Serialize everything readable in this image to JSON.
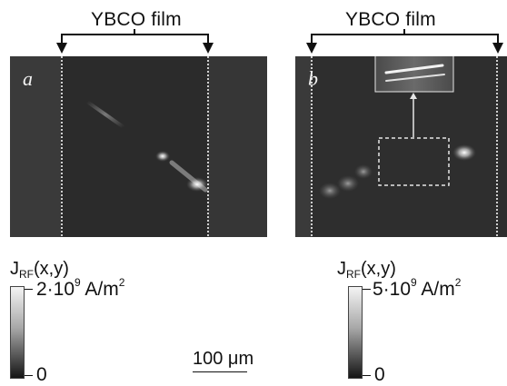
{
  "panels": [
    {
      "letter": "a",
      "film_label": "YBCO film",
      "colorbar_title_main": "J",
      "colorbar_title_sub": "RF",
      "colorbar_title_args": "(x,y)",
      "max_label_mantissa": "2·10",
      "max_label_exponent": "9",
      "max_label_unit": "A/m",
      "max_label_unit_exp": "2",
      "min_label": "0"
    },
    {
      "letter": "b",
      "film_label": "YBCO film",
      "colorbar_title_main": "J",
      "colorbar_title_sub": "RF",
      "colorbar_title_args": "(x,y)",
      "max_label_mantissa": "5·10",
      "max_label_exponent": "9",
      "max_label_unit": "A/m",
      "max_label_unit_exp": "2",
      "min_label": "0"
    }
  ],
  "scale_bar_label": "100 μm",
  "colors": {
    "panel_background": "#2f2f2f",
    "film_edge": "#cfcfcf",
    "hotspot": "#ffffff",
    "inset_box": "#e6e6e6"
  }
}
